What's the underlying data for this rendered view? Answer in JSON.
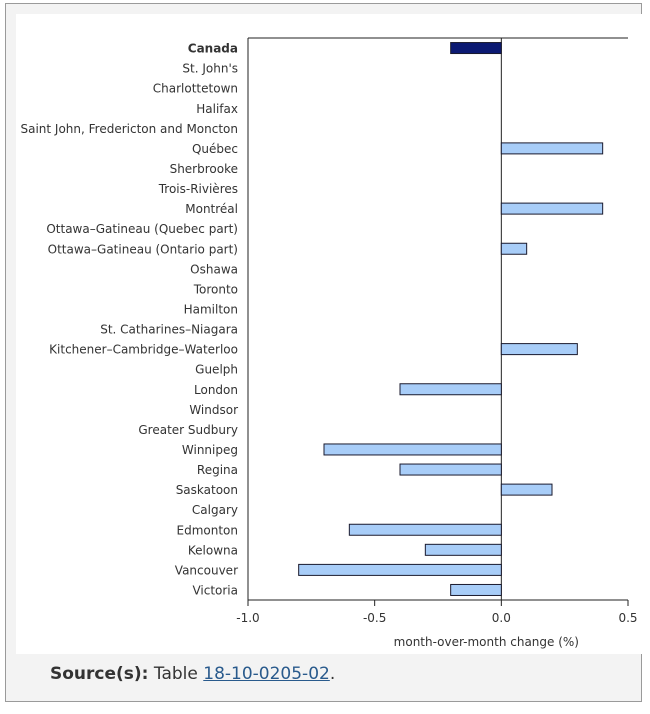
{
  "chart_data": {
    "type": "bar",
    "orientation": "horizontal",
    "categories": [
      "Canada",
      "St. John's",
      "Charlottetown",
      "Halifax",
      "Saint John, Fredericton and Moncton",
      "Québec",
      "Sherbrooke",
      "Trois-Rivières",
      "Montréal",
      "Ottawa–Gatineau (Quebec part)",
      "Ottawa–Gatineau (Ontario part)",
      "Oshawa",
      "Toronto",
      "Hamilton",
      "St. Catharines–Niagara",
      "Kitchener–Cambridge–Waterloo",
      "Guelph",
      "London",
      "Windsor",
      "Greater Sudbury",
      "Winnipeg",
      "Regina",
      "Saskatoon",
      "Calgary",
      "Edmonton",
      "Kelowna",
      "Vancouver",
      "Victoria"
    ],
    "values": [
      -0.2,
      0,
      0,
      0,
      0,
      0.4,
      0,
      0,
      0.4,
      0,
      0.1,
      0,
      0,
      0,
      0,
      0.3,
      0,
      -0.4,
      0,
      0,
      -0.7,
      -0.4,
      0.2,
      0,
      -0.6,
      -0.3,
      -0.8,
      -0.2
    ],
    "highlight_category": "Canada",
    "xlabel": "month-over-month change (%)",
    "ylabel": "",
    "title": "",
    "xlim": [
      -1.0,
      0.5
    ],
    "xticks": [
      -1.0,
      -0.5,
      0.0,
      0.5
    ],
    "xtick_labels": [
      "-1.0",
      "-0.5",
      "0.0",
      "0.5"
    ],
    "grid": false,
    "colors": {
      "highlight_bar": "#0c1a73",
      "bar": "#a8cdf8",
      "bar_edge": "#1a1a2e",
      "axis": "#222222"
    }
  },
  "footnote": {
    "label": "Source(s):",
    "text_before": "Table",
    "link_text": "18-10-0205-02",
    "text_after": "."
  }
}
